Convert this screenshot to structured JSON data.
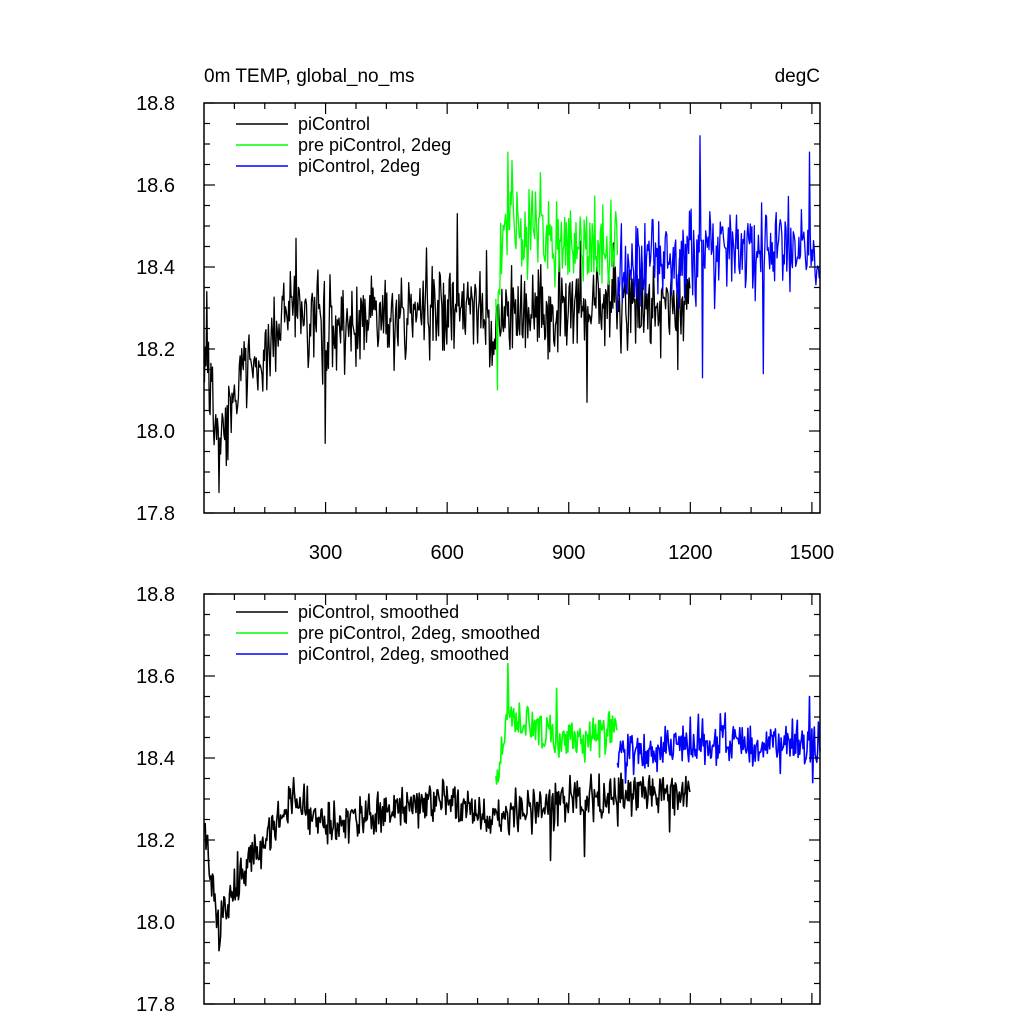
{
  "chart_data": [
    {
      "type": "line",
      "title": "0m TEMP, global_no_ms",
      "units": "degC",
      "xlabel": "",
      "ylabel": "",
      "xlim": [
        0,
        1520
      ],
      "ylim": [
        17.8,
        18.8
      ],
      "x_ticks": [
        300,
        600,
        900,
        1200,
        1500
      ],
      "y_ticks": [
        17.8,
        18.0,
        18.2,
        18.4,
        18.6,
        18.8
      ],
      "y_tick_labels": [
        "17.8",
        "18.0",
        "18.2",
        "18.4",
        "18.6",
        "18.8"
      ],
      "x_tick_labels": [
        "300",
        "600",
        "900",
        "1200",
        "1500"
      ],
      "legend": "top-left",
      "series": [
        {
          "name": "piControl",
          "color": "#000000",
          "x_start": 1,
          "x_end": 1200,
          "baseline": [
            [
              1,
              18.2
            ],
            [
              20,
              18.15
            ],
            [
              30,
              18.0
            ],
            [
              50,
              18.0
            ],
            [
              70,
              18.1
            ],
            [
              150,
              18.2
            ],
            [
              220,
              18.3
            ],
            [
              300,
              18.25
            ],
            [
              600,
              18.3
            ],
            [
              720,
              18.28
            ],
            [
              900,
              18.3
            ],
            [
              1200,
              18.32
            ]
          ],
          "noise": 0.075,
          "extremes": [
            [
              8,
              18.34
            ],
            [
              15,
              18.04
            ],
            [
              37,
              17.85
            ],
            [
              60,
              17.93
            ],
            [
              228,
              18.47
            ],
            [
              300,
              17.97
            ],
            [
              625,
              18.53
            ],
            [
              945,
              18.07
            ],
            [
              1170,
              18.15
            ]
          ]
        },
        {
          "name": "pre piControl, 2deg",
          "color": "#00ff00",
          "x_start": 720,
          "x_end": 1020,
          "baseline": [
            [
              720,
              18.32
            ],
            [
              745,
              18.5
            ],
            [
              800,
              18.48
            ],
            [
              900,
              18.45
            ],
            [
              1020,
              18.44
            ]
          ],
          "noise": 0.075,
          "extremes": [
            [
              725,
              18.1
            ],
            [
              750,
              18.68
            ],
            [
              760,
              18.66
            ],
            [
              830,
              18.63
            ]
          ]
        },
        {
          "name": "piControl, 2deg",
          "color": "#0000ff",
          "x_start": 1020,
          "x_end": 1520,
          "baseline": [
            [
              1020,
              18.38
            ],
            [
              1100,
              18.4
            ],
            [
              1200,
              18.43
            ],
            [
              1350,
              18.45
            ],
            [
              1520,
              18.44
            ]
          ],
          "noise": 0.07,
          "extremes": [
            [
              1225,
              18.72
            ],
            [
              1230,
              18.13
            ],
            [
              1380,
              18.14
            ],
            [
              1495,
              18.68
            ]
          ]
        }
      ]
    },
    {
      "type": "line",
      "title": "",
      "xlabel": "",
      "ylabel": "",
      "xlim": [
        0,
        1520
      ],
      "ylim": [
        17.8,
        18.8
      ],
      "x_ticks": [
        300,
        600,
        900,
        1200,
        1500
      ],
      "y_ticks": [
        17.8,
        18.0,
        18.2,
        18.4,
        18.6,
        18.8
      ],
      "y_tick_labels": [
        "17.8",
        "18.0",
        "18.2",
        "18.4",
        "18.6",
        "18.8"
      ],
      "legend": "top-left",
      "series": [
        {
          "name": "piControl, smoothed",
          "color": "#000000",
          "x_start": 1,
          "x_end": 1200,
          "baseline": [
            [
              1,
              18.22
            ],
            [
              25,
              18.05
            ],
            [
              40,
              18.0
            ],
            [
              80,
              18.1
            ],
            [
              150,
              18.2
            ],
            [
              220,
              18.3
            ],
            [
              300,
              18.24
            ],
            [
              600,
              18.3
            ],
            [
              720,
              18.25
            ],
            [
              900,
              18.3
            ],
            [
              1200,
              18.32
            ]
          ],
          "noise": 0.035,
          "extremes": [
            [
              4,
              18.24
            ],
            [
              38,
              17.93
            ],
            [
              210,
              18.33
            ],
            [
              855,
              18.15
            ],
            [
              940,
              18.16
            ],
            [
              1150,
              18.22
            ]
          ]
        },
        {
          "name": "pre piControl, 2deg, smoothed",
          "color": "#00ff00",
          "x_start": 720,
          "x_end": 1020,
          "baseline": [
            [
              720,
              18.32
            ],
            [
              745,
              18.5
            ],
            [
              800,
              18.48
            ],
            [
              900,
              18.44
            ],
            [
              1020,
              18.46
            ]
          ],
          "noise": 0.035,
          "extremes": [
            [
              750,
              18.63
            ],
            [
              870,
              18.57
            ]
          ]
        },
        {
          "name": "piControl, 2deg, smoothed",
          "color": "#0000ff",
          "x_start": 1020,
          "x_end": 1520,
          "baseline": [
            [
              1020,
              18.4
            ],
            [
              1100,
              18.42
            ],
            [
              1200,
              18.44
            ],
            [
              1350,
              18.44
            ],
            [
              1520,
              18.43
            ]
          ],
          "noise": 0.035,
          "extremes": [
            [
              1495,
              18.55
            ],
            [
              1502,
              18.34
            ]
          ]
        }
      ]
    }
  ]
}
